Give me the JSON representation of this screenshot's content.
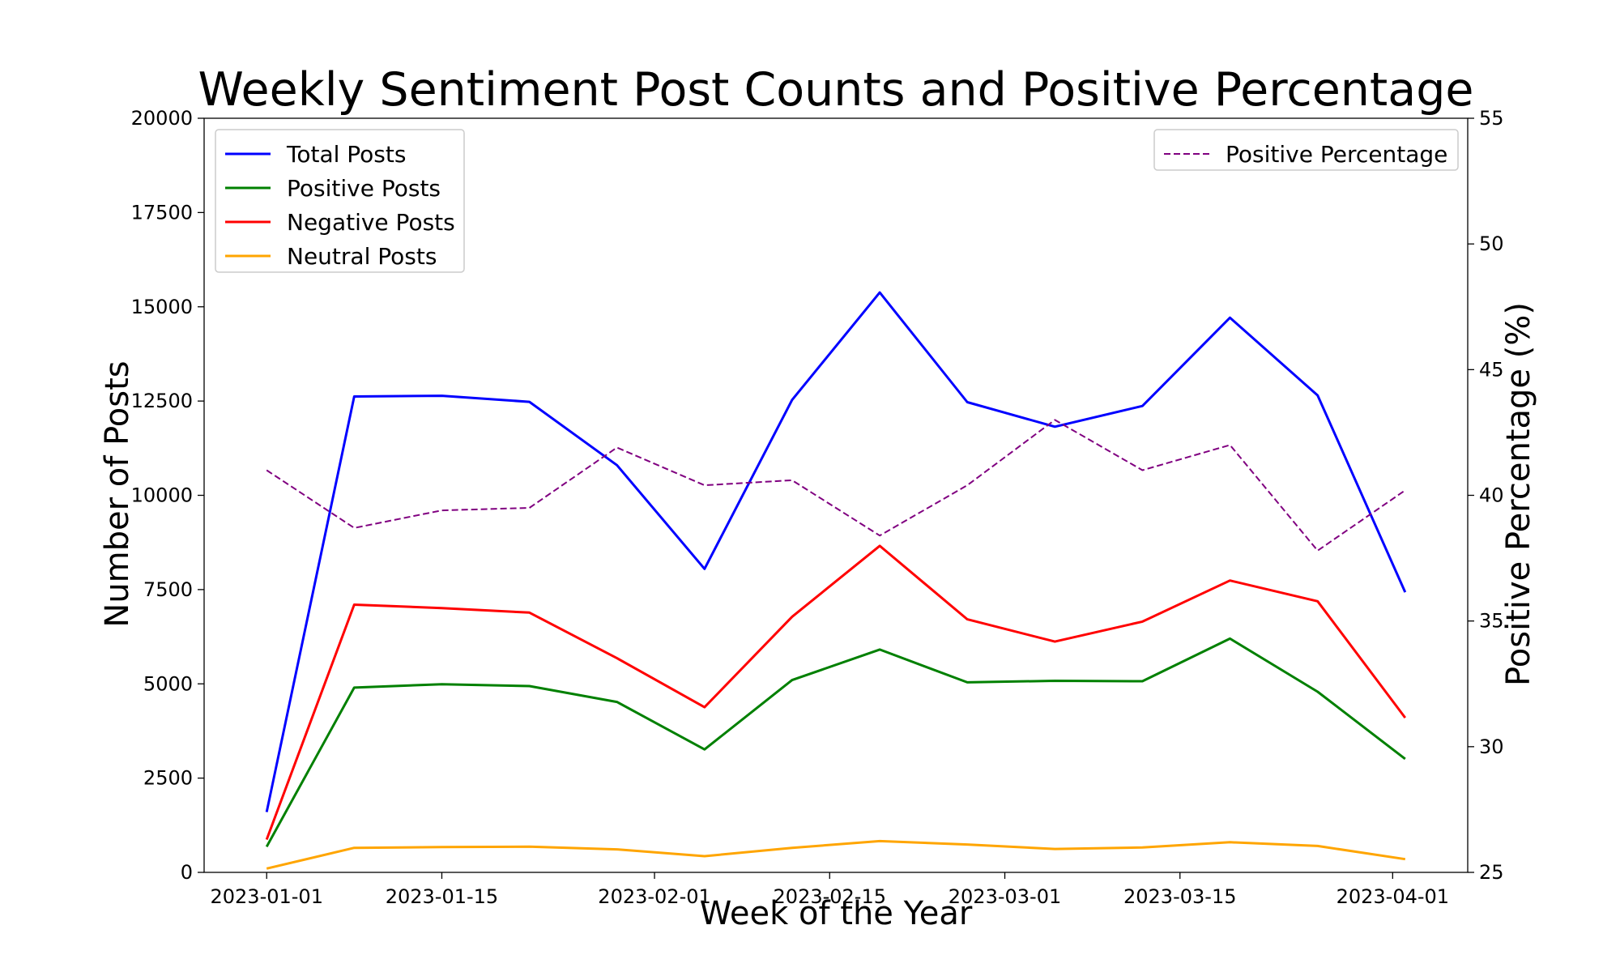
{
  "chart_data": {
    "type": "line",
    "title": "Weekly Sentiment Post Counts and Positive Percentage",
    "xlabel": "Week of the Year",
    "ylabel": "Number of Posts",
    "y2label": "Positive Percentage (%)",
    "x": [
      "2023-01-01",
      "2023-01-08",
      "2023-01-15",
      "2023-01-22",
      "2023-01-29",
      "2023-02-05",
      "2023-02-12",
      "2023-02-19",
      "2023-02-26",
      "2023-03-05",
      "2023-03-12",
      "2023-03-19",
      "2023-03-26",
      "2023-04-02"
    ],
    "x_tick_labels": [
      "2023-01-01",
      "2023-01-15",
      "2023-02-01",
      "2023-02-15",
      "2023-03-01",
      "2023-03-15",
      "2023-04-01"
    ],
    "xlim": [
      "2023-12-27",
      "2023-04-06"
    ],
    "ylim": [
      0,
      20000
    ],
    "y_ticks": [
      0,
      2500,
      5000,
      7500,
      10000,
      12500,
      15000,
      17500,
      20000
    ],
    "y2lim": [
      25,
      55
    ],
    "y2_ticks": [
      25,
      30,
      35,
      40,
      45,
      50,
      55
    ],
    "grid": false,
    "series": [
      {
        "name": "Total Posts",
        "axis": "left",
        "color": "#0000ff",
        "style": "solid",
        "values": [
          1600,
          12620,
          12640,
          12480,
          10800,
          8050,
          12530,
          15380,
          12470,
          11820,
          12370,
          14710,
          12650,
          7430
        ]
      },
      {
        "name": "Positive Posts",
        "axis": "left",
        "color": "#008000",
        "style": "solid",
        "values": [
          680,
          4900,
          4990,
          4940,
          4520,
          3260,
          5100,
          5910,
          5040,
          5080,
          5070,
          6200,
          4790,
          3010
        ]
      },
      {
        "name": "Negative Posts",
        "axis": "left",
        "color": "#ff0000",
        "style": "solid",
        "values": [
          870,
          7100,
          7010,
          6890,
          5680,
          4380,
          6780,
          8660,
          6710,
          6120,
          6650,
          7740,
          7190,
          4100
        ]
      },
      {
        "name": "Neutral Posts",
        "axis": "left",
        "color": "#ffa500",
        "style": "solid",
        "values": [
          100,
          650,
          670,
          680,
          610,
          430,
          650,
          830,
          740,
          620,
          660,
          800,
          700,
          350
        ]
      },
      {
        "name": "Positive Percentage",
        "axis": "right",
        "color": "#800080",
        "style": "dashed",
        "values": [
          41.0,
          38.7,
          39.4,
          39.5,
          41.9,
          40.4,
          40.6,
          38.4,
          40.4,
          43.0,
          41.0,
          42.0,
          37.8,
          40.2
        ]
      }
    ],
    "legend_left": {
      "placement": "upper-left",
      "entries": [
        "Total Posts",
        "Positive Posts",
        "Negative Posts",
        "Neutral Posts"
      ]
    },
    "legend_right": {
      "placement": "upper-right",
      "entries": [
        "Positive Percentage"
      ]
    }
  }
}
